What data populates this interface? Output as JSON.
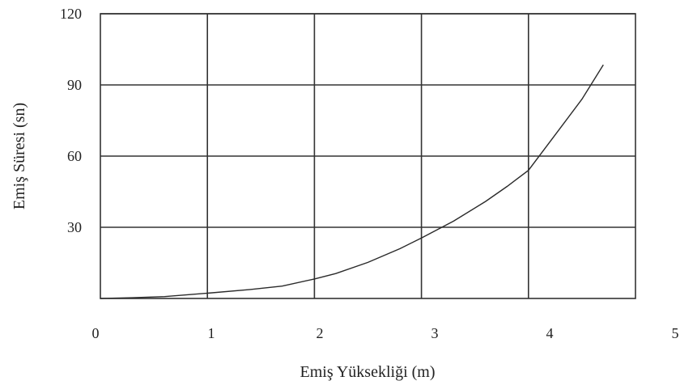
{
  "chart_data": {
    "type": "line",
    "xlabel": "Emiş Yüksekliği (m)",
    "ylabel": "Emiş Süresi (sn)",
    "xlim": [
      0,
      5
    ],
    "ylim": [
      0,
      120
    ],
    "xticks": [
      "0",
      "1",
      "2",
      "3",
      "4",
      "5"
    ],
    "yticks": [
      "30",
      "60",
      "90",
      "120"
    ],
    "grid": true,
    "series": [
      {
        "x": [
          0,
          0.3,
          0.6,
          1.0,
          1.4,
          1.7,
          2.0,
          2.2,
          2.5,
          2.8,
          3.0,
          3.3,
          3.6,
          3.8,
          4.0,
          4.3,
          4.5,
          4.7
        ],
        "y": [
          0,
          0.3,
          0.8,
          2.2,
          3.8,
          5.2,
          8.2,
          10.5,
          15.2,
          21.0,
          25.5,
          32.6,
          40.9,
          47.2,
          54.0,
          72.0,
          84.0,
          98.5
        ]
      }
    ]
  }
}
